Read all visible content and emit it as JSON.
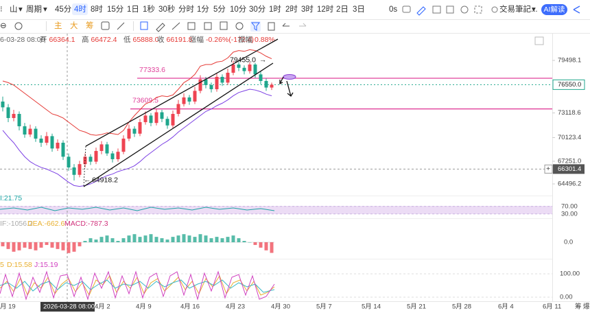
{
  "toolbar": {
    "chart_type": "山",
    "period": "周期",
    "intervals": [
      "45分",
      "4时",
      "8时",
      "15分",
      "1日",
      "1秒",
      "30秒",
      "分时",
      "1分",
      "5分",
      "10分",
      "30分",
      "1时",
      "2时",
      "3时",
      "12时",
      "2日",
      "3日"
    ],
    "active_index": 1,
    "countdown": "0s",
    "notes": "交易筆記...",
    "ai": "AI解读"
  },
  "tools": {
    "main": "主",
    "big": "大",
    "chips": "筹"
  },
  "info": {
    "time": "6-03-28 08:00",
    "items": [
      {
        "label": "开",
        "value": "66364.1"
      },
      {
        "label": "高",
        "value": "66472.4"
      },
      {
        "label": "低",
        "value": "65888.0"
      },
      {
        "label": "收",
        "value": "66191.8"
      },
      {
        "label": "涨幅",
        "value": "-0.26%(-172.4)"
      },
      {
        "label": "振幅",
        "value": "0.88%"
      }
    ]
  },
  "chart_data": {
    "type": "candlestick",
    "ylim": [
      63080,
      82250
    ],
    "yticks": [
      79498.1,
      73118.6,
      70123.4,
      {
        "value": 67251,
        "label": "67251.0"
      },
      64496.2
    ],
    "last_price": {
      "value": 76550,
      "label": "76550.0"
    },
    "crosshair_price": 66301.4,
    "levels": [
      77333.6,
      73609.5
    ],
    "level_color": "#e0409a",
    "high_mark": {
      "value": 79455,
      "label": "79455.0"
    },
    "low_mark": 64918.2,
    "up_color": "#ee4452",
    "down_color": "#1fa68c",
    "candles": [
      [
        74500,
        75100,
        73300,
        73800
      ],
      [
        73800,
        74200,
        72000,
        72500
      ],
      [
        72500,
        73500,
        72100,
        73000
      ],
      [
        73000,
        73300,
        71000,
        71500
      ],
      [
        71500,
        71900,
        70100,
        70500
      ],
      [
        70500,
        71700,
        70200,
        71200
      ],
      [
        71200,
        71500,
        69600,
        70000
      ],
      [
        70000,
        70400,
        69000,
        69500
      ],
      [
        69500,
        70800,
        69200,
        70300
      ],
      [
        70300,
        70600,
        68400,
        68800
      ],
      [
        68800,
        69900,
        68500,
        69500
      ],
      [
        69500,
        69800,
        67400,
        67800
      ],
      [
        67800,
        68200,
        66100,
        66500
      ],
      [
        66500,
        66900,
        64918.2,
        65600
      ],
      [
        65600,
        67300,
        65300,
        66900
      ],
      [
        66900,
        68200,
        66500,
        67800
      ],
      [
        67800,
        68100,
        66800,
        67200
      ],
      [
        67200,
        68900,
        66900,
        68500
      ],
      [
        68500,
        69700,
        68100,
        69300
      ],
      [
        69300,
        69600,
        67900,
        68200
      ],
      [
        68200,
        68500,
        67100,
        67500
      ],
      [
        67500,
        68800,
        67200,
        68400
      ],
      [
        68400,
        70400,
        68100,
        70000
      ],
      [
        70000,
        71700,
        69700,
        71200
      ],
      [
        71200,
        71500,
        70200,
        70600
      ],
      [
        70600,
        72400,
        70300,
        72000
      ],
      [
        72000,
        73300,
        71700,
        72800
      ],
      [
        72800,
        73100,
        71500,
        71900
      ],
      [
        71900,
        73600,
        71600,
        73200
      ],
      [
        73200,
        73500,
        72000,
        72400
      ],
      [
        72400,
        72700,
        71200,
        71600
      ],
      [
        71600,
        73400,
        71300,
        73000
      ],
      [
        73000,
        74700,
        72700,
        74200
      ],
      [
        74200,
        75500,
        73900,
        75000
      ],
      [
        75000,
        75300,
        74100,
        74500
      ],
      [
        74500,
        76300,
        74200,
        75800
      ],
      [
        75800,
        77700,
        75500,
        77200
      ],
      [
        77200,
        77500,
        76100,
        76500
      ],
      [
        76500,
        76800,
        75600,
        76000
      ],
      [
        76000,
        77900,
        75700,
        77500
      ],
      [
        77500,
        77800,
        76400,
        76800
      ],
      [
        76800,
        78500,
        76500,
        78000
      ],
      [
        78000,
        79455,
        77700,
        79000
      ],
      [
        79000,
        79300,
        78200,
        78600
      ],
      [
        78600,
        78900,
        77800,
        78200
      ],
      [
        78200,
        79300,
        77900,
        79000
      ],
      [
        79000,
        79200,
        77400,
        77800
      ],
      [
        77800,
        78100,
        76600,
        77000
      ],
      [
        77000,
        77300,
        75800,
        76200
      ],
      [
        76200,
        76800,
        75900,
        76550
      ]
    ],
    "upper_band": {
      "color": "#e53935",
      "values": [
        77000,
        76800,
        76500,
        76000,
        75500,
        75000,
        74500,
        74000,
        73500,
        73000,
        72800,
        72500,
        72000,
        71500,
        71000,
        70800,
        70500,
        70400,
        70500,
        70700,
        70600,
        70500,
        71000,
        72000,
        72800,
        73500,
        74200,
        74500,
        75000,
        75200,
        75100,
        75300,
        76000,
        76800,
        77200,
        77800,
        78800,
        79000,
        79000,
        79300,
        79400,
        79800,
        80500,
        80700,
        80600,
        80800,
        80700,
        80400,
        80000,
        79700
      ]
    },
    "lower_band": {
      "color": "#7b3fe4",
      "values": [
        71000,
        70200,
        69500,
        68600,
        67800,
        67200,
        66800,
        66500,
        66300,
        66000,
        65700,
        65200,
        64700,
        64300,
        64200,
        64300,
        64500,
        64800,
        65200,
        65500,
        65700,
        66000,
        66200,
        66400,
        66700,
        67200,
        67800,
        68300,
        68800,
        69300,
        69700,
        70200,
        70800,
        71300,
        71800,
        72300,
        72800,
        73300,
        73600,
        74000,
        74300,
        74700,
        75200,
        75600,
        75800,
        76000,
        75900,
        75700,
        75400,
        75200
      ]
    },
    "x_labels": [
      "月 19",
      "4月 2",
      "4月 9",
      "4月 16",
      "4月 23",
      "4月 30",
      "5月 7",
      "5月 14",
      "5月 21",
      "5月 28",
      "6月 4",
      "6月 11"
    ],
    "crosshair_time": "2026-03-28 08:00"
  },
  "rsi": {
    "label": "I:21.75",
    "ylim": [
      0,
      100
    ],
    "ticks": [
      {
        "value": 70,
        "label": "70.00"
      },
      {
        "value": 30,
        "label": "30.00"
      }
    ]
  },
  "macd": {
    "dif": "IF:-1056.2",
    "dea": "DEA:-662.6",
    "macd": "MACD:-787.3",
    "ylim": [
      -1600,
      1600
    ],
    "ticks": [
      {
        "value": 0,
        "label": "0.0"
      }
    ],
    "values": [
      -300,
      -500,
      -700,
      -600,
      -400,
      -500,
      -600,
      -400,
      -200,
      -400,
      -500,
      -600,
      -800,
      -700,
      -300,
      100,
      300,
      200,
      400,
      500,
      300,
      100,
      300,
      500,
      600,
      400,
      500,
      600,
      400,
      300,
      200,
      400,
      500,
      600,
      500,
      400,
      600,
      500,
      300,
      400,
      300,
      400,
      500,
      300,
      100,
      0,
      -200,
      -400,
      -600,
      -787.3
    ]
  },
  "kdj": {
    "k": "5",
    "d": "D:15.58",
    "j": "J:15.19",
    "ylim": [
      0,
      100
    ],
    "ticks": [
      {
        "value": 100,
        "label": "100.00"
      },
      {
        "value": 0,
        "label": "0.00"
      }
    ]
  },
  "corner": {
    "a": "筹",
    "b": "爆"
  }
}
